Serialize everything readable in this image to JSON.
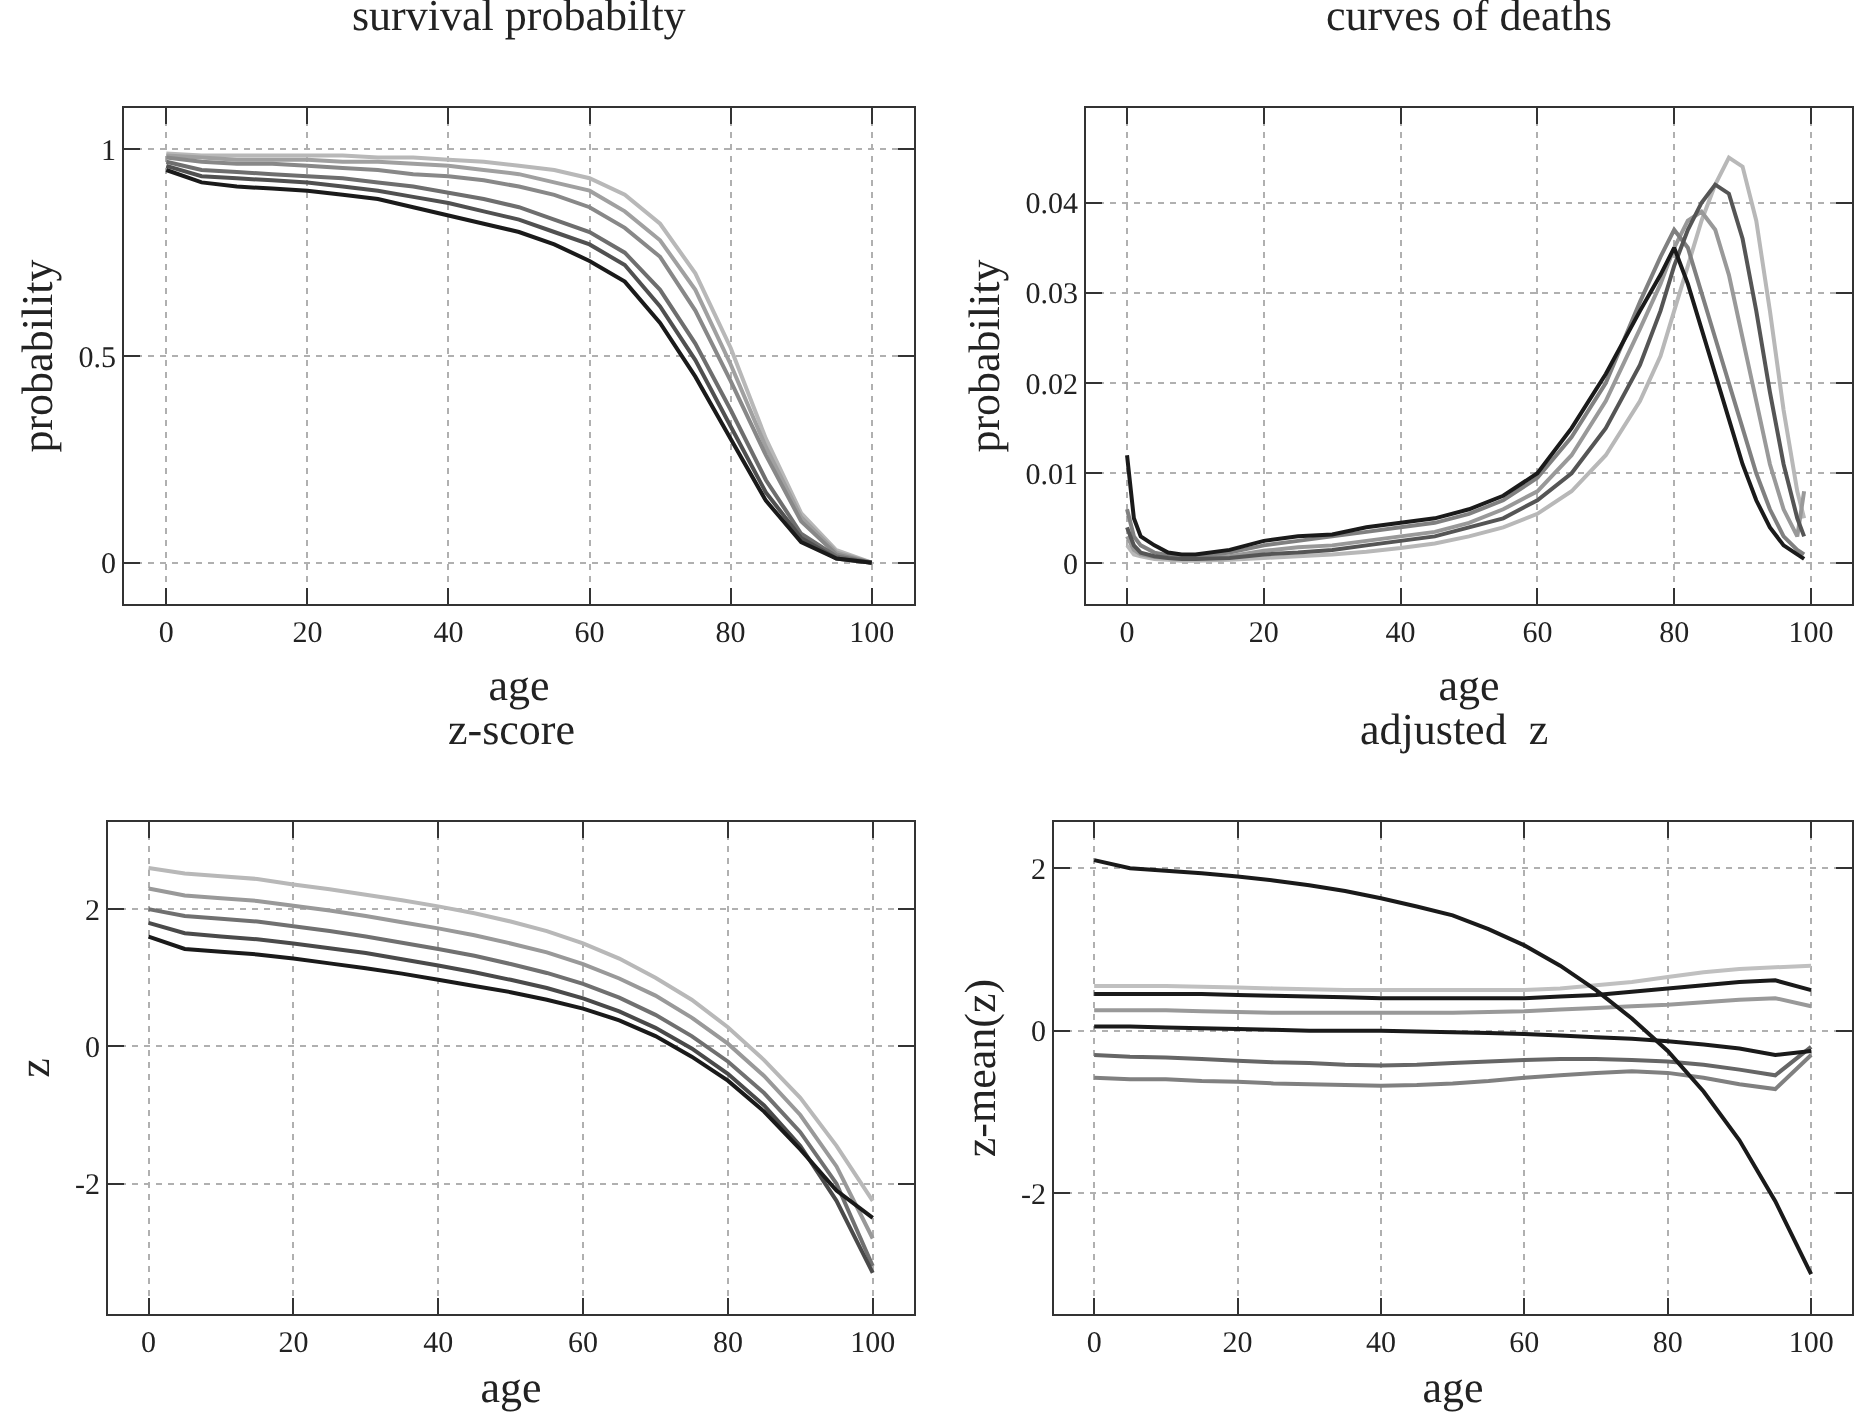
{
  "chart_data": [
    {
      "type": "line",
      "title": "survival probabilty",
      "xlabel": "age",
      "ylabel": "probability",
      "xlim": [
        -6,
        106
      ],
      "ylim": [
        -0.1,
        1.1
      ],
      "xticks": [
        0,
        20,
        40,
        60,
        80,
        100
      ],
      "yticks": [
        0,
        0.5,
        1
      ],
      "grid": true,
      "line_style": "solid",
      "x": [
        0,
        5,
        10,
        15,
        20,
        25,
        30,
        35,
        40,
        45,
        50,
        55,
        60,
        65,
        70,
        75,
        80,
        85,
        90,
        95,
        100
      ],
      "series": [
        {
          "color": "#b8b8b8",
          "values": [
            0.99,
            0.985,
            0.985,
            0.985,
            0.985,
            0.985,
            0.98,
            0.98,
            0.975,
            0.97,
            0.96,
            0.95,
            0.93,
            0.89,
            0.82,
            0.7,
            0.52,
            0.3,
            0.12,
            0.03,
            0.0
          ]
        },
        {
          "color": "#a0a0a0",
          "values": [
            0.985,
            0.98,
            0.975,
            0.975,
            0.975,
            0.97,
            0.97,
            0.965,
            0.96,
            0.95,
            0.94,
            0.92,
            0.9,
            0.85,
            0.78,
            0.66,
            0.48,
            0.28,
            0.11,
            0.025,
            0
          ]
        },
        {
          "color": "#888888",
          "values": [
            0.98,
            0.97,
            0.965,
            0.965,
            0.96,
            0.955,
            0.95,
            0.94,
            0.935,
            0.925,
            0.91,
            0.89,
            0.86,
            0.81,
            0.74,
            0.61,
            0.44,
            0.26,
            0.1,
            0.02,
            0
          ]
        },
        {
          "color": "#6e6e6e",
          "values": [
            0.97,
            0.95,
            0.945,
            0.94,
            0.935,
            0.93,
            0.92,
            0.91,
            0.895,
            0.88,
            0.86,
            0.83,
            0.8,
            0.75,
            0.66,
            0.53,
            0.37,
            0.2,
            0.07,
            0.015,
            0
          ]
        },
        {
          "color": "#505050",
          "values": [
            0.96,
            0.935,
            0.93,
            0.925,
            0.92,
            0.91,
            0.9,
            0.885,
            0.87,
            0.85,
            0.83,
            0.8,
            0.77,
            0.72,
            0.62,
            0.49,
            0.33,
            0.17,
            0.06,
            0.01,
            0
          ]
        },
        {
          "color": "#1a1a1a",
          "values": [
            0.95,
            0.92,
            0.91,
            0.905,
            0.9,
            0.89,
            0.88,
            0.86,
            0.84,
            0.82,
            0.8,
            0.77,
            0.73,
            0.68,
            0.58,
            0.45,
            0.3,
            0.15,
            0.05,
            0.01,
            0.0
          ]
        }
      ]
    },
    {
      "type": "line",
      "title": "curves of deaths",
      "xlabel": "age",
      "ylabel": "probability",
      "xlim": [
        -6,
        106
      ],
      "ylim": [
        -0.0045,
        0.0505
      ],
      "xticks": [
        0,
        20,
        40,
        60,
        80,
        100
      ],
      "yticks": [
        0,
        0.01,
        0.02,
        0.03,
        0.04
      ],
      "grid": true,
      "line_style": "solid",
      "x": [
        0,
        1,
        2,
        4,
        6,
        8,
        10,
        15,
        20,
        25,
        30,
        35,
        40,
        45,
        50,
        55,
        60,
        65,
        70,
        75,
        78,
        80,
        82,
        84,
        86,
        88,
        90,
        92,
        94,
        96,
        98,
        99
      ],
      "series": [
        {
          "color": "#b8b8b8",
          "values": [
            0.002,
            0.001,
            0.0008,
            0.0005,
            0.0004,
            0.0003,
            0.0003,
            0.0004,
            0.0006,
            0.0008,
            0.001,
            0.0013,
            0.0017,
            0.0022,
            0.003,
            0.004,
            0.0055,
            0.008,
            0.012,
            0.018,
            0.023,
            0.028,
            0.033,
            0.038,
            0.042,
            0.045,
            0.044,
            0.038,
            0.028,
            0.017,
            0.008,
            0.005
          ]
        },
        {
          "color": "#999999",
          "values": [
            0.003,
            0.0015,
            0.001,
            0.0007,
            0.0006,
            0.0005,
            0.0005,
            0.0008,
            0.0014,
            0.0018,
            0.002,
            0.0025,
            0.003,
            0.0035,
            0.0045,
            0.006,
            0.008,
            0.012,
            0.018,
            0.026,
            0.031,
            0.035,
            0.038,
            0.039,
            0.037,
            0.032,
            0.025,
            0.018,
            0.011,
            0.006,
            0.003,
            0.008
          ]
        },
        {
          "color": "#808080",
          "values": [
            0.006,
            0.003,
            0.002,
            0.0012,
            0.0009,
            0.0008,
            0.0008,
            0.0012,
            0.002,
            0.0025,
            0.003,
            0.0035,
            0.004,
            0.0045,
            0.0055,
            0.007,
            0.0095,
            0.014,
            0.02,
            0.029,
            0.034,
            0.037,
            0.035,
            0.03,
            0.025,
            0.02,
            0.015,
            0.01,
            0.006,
            0.003,
            0.0015,
            0.001
          ]
        },
        {
          "color": "#555555",
          "values": [
            0.004,
            0.002,
            0.0012,
            0.0008,
            0.0006,
            0.0005,
            0.0005,
            0.0006,
            0.001,
            0.0012,
            0.0015,
            0.002,
            0.0025,
            0.003,
            0.004,
            0.005,
            0.007,
            0.01,
            0.015,
            0.022,
            0.028,
            0.033,
            0.037,
            0.04,
            0.042,
            0.041,
            0.036,
            0.028,
            0.019,
            0.011,
            0.005,
            0.003
          ]
        },
        {
          "color": "#1a1a1a",
          "values": [
            0.012,
            0.005,
            0.003,
            0.002,
            0.0012,
            0.001,
            0.001,
            0.0015,
            0.0025,
            0.003,
            0.0032,
            0.004,
            0.0045,
            0.005,
            0.006,
            0.0075,
            0.01,
            0.015,
            0.021,
            0.028,
            0.032,
            0.035,
            0.031,
            0.026,
            0.021,
            0.016,
            0.011,
            0.007,
            0.004,
            0.002,
            0.001,
            0.0005
          ]
        }
      ]
    },
    {
      "type": "line",
      "title": "z-score",
      "xlabel": "age",
      "ylabel": "z",
      "xlim": [
        -5.6,
        105.7
      ],
      "ylim": [
        -3.9,
        3.27
      ],
      "xticks": [
        0,
        20,
        40,
        60,
        80,
        100
      ],
      "yticks": [
        -2,
        0,
        2
      ],
      "grid": true,
      "line_style": "solid",
      "x": [
        0,
        5,
        10,
        15,
        20,
        25,
        30,
        35,
        40,
        45,
        50,
        55,
        60,
        65,
        70,
        75,
        80,
        85,
        90,
        95,
        100
      ],
      "series": [
        {
          "color": "#b8b8b8",
          "values": [
            2.6,
            2.52,
            2.48,
            2.44,
            2.36,
            2.29,
            2.21,
            2.13,
            2.04,
            1.94,
            1.82,
            1.68,
            1.5,
            1.28,
            1.0,
            0.68,
            0.28,
            -0.2,
            -0.75,
            -1.45,
            -2.25
          ]
        },
        {
          "color": "#999999",
          "values": [
            2.3,
            2.2,
            2.16,
            2.12,
            2.05,
            1.98,
            1.9,
            1.81,
            1.72,
            1.62,
            1.5,
            1.37,
            1.2,
            0.99,
            0.74,
            0.42,
            0.04,
            -0.43,
            -1.0,
            -1.75,
            -2.8
          ]
        },
        {
          "color": "#707070",
          "values": [
            2.0,
            1.9,
            1.86,
            1.82,
            1.75,
            1.68,
            1.6,
            1.51,
            1.42,
            1.32,
            1.2,
            1.07,
            0.91,
            0.71,
            0.46,
            0.15,
            -0.22,
            -0.68,
            -1.25,
            -2.0,
            -3.2
          ]
        },
        {
          "color": "#4a4a4a",
          "values": [
            1.8,
            1.65,
            1.6,
            1.56,
            1.5,
            1.43,
            1.36,
            1.27,
            1.18,
            1.08,
            0.97,
            0.85,
            0.7,
            0.51,
            0.27,
            -0.03,
            -0.4,
            -0.86,
            -1.45,
            -2.25,
            -3.3
          ]
        },
        {
          "color": "#1a1a1a",
          "values": [
            1.6,
            1.42,
            1.38,
            1.34,
            1.28,
            1.21,
            1.14,
            1.06,
            0.97,
            0.88,
            0.79,
            0.68,
            0.55,
            0.38,
            0.15,
            -0.15,
            -0.5,
            -0.95,
            -1.5,
            -2.1,
            -2.5
          ]
        }
      ]
    },
    {
      "type": "line",
      "title": "adjusted  z",
      "xlabel": "age",
      "ylabel": "z-mean(z)",
      "xlim": [
        -5.6,
        105.7
      ],
      "ylim": [
        -3.49,
        2.57
      ],
      "xticks": [
        0,
        20,
        40,
        60,
        80,
        100
      ],
      "yticks": [
        -2,
        0,
        2
      ],
      "grid": true,
      "line_style": "solid",
      "x": [
        0,
        5,
        10,
        15,
        20,
        25,
        30,
        35,
        40,
        45,
        50,
        55,
        60,
        65,
        70,
        75,
        80,
        85,
        90,
        95,
        100
      ],
      "series": [
        {
          "color": "#c0c0c0",
          "values": [
            0.55,
            0.55,
            0.55,
            0.54,
            0.53,
            0.52,
            0.51,
            0.5,
            0.5,
            0.5,
            0.5,
            0.5,
            0.5,
            0.52,
            0.56,
            0.6,
            0.66,
            0.72,
            0.76,
            0.78,
            0.8
          ]
        },
        {
          "color": "#999999",
          "values": [
            0.25,
            0.25,
            0.25,
            0.24,
            0.23,
            0.22,
            0.22,
            0.22,
            0.22,
            0.22,
            0.22,
            0.23,
            0.24,
            0.26,
            0.28,
            0.3,
            0.32,
            0.35,
            0.38,
            0.4,
            0.3
          ]
        },
        {
          "color": "#666666",
          "values": [
            -0.3,
            -0.32,
            -0.33,
            -0.35,
            -0.37,
            -0.39,
            -0.4,
            -0.42,
            -0.43,
            -0.42,
            -0.4,
            -0.38,
            -0.36,
            -0.35,
            -0.35,
            -0.36,
            -0.38,
            -0.42,
            -0.48,
            -0.55,
            -0.2
          ]
        },
        {
          "color": "#808080",
          "values": [
            -0.58,
            -0.6,
            -0.6,
            -0.62,
            -0.63,
            -0.65,
            -0.66,
            -0.67,
            -0.68,
            -0.67,
            -0.65,
            -0.62,
            -0.58,
            -0.55,
            -0.52,
            -0.5,
            -0.52,
            -0.58,
            -0.66,
            -0.72,
            -0.3
          ]
        },
        {
          "color": "#1a1a1a",
          "values": [
            0.45,
            0.45,
            0.45,
            0.45,
            0.44,
            0.43,
            0.42,
            0.41,
            0.4,
            0.4,
            0.4,
            0.4,
            0.4,
            0.42,
            0.44,
            0.48,
            0.52,
            0.56,
            0.6,
            0.62,
            0.5
          ]
        },
        {
          "color": "#1a1a1a",
          "values": [
            0.05,
            0.05,
            0.04,
            0.03,
            0.02,
            0.01,
            0.0,
            0.0,
            0.0,
            -0.01,
            -0.02,
            -0.03,
            -0.04,
            -0.06,
            -0.08,
            -0.1,
            -0.13,
            -0.17,
            -0.22,
            -0.3,
            -0.25
          ]
        },
        {
          "color": "#1a1a1a",
          "values": [
            2.1,
            2.0,
            1.97,
            1.94,
            1.9,
            1.85,
            1.79,
            1.72,
            1.63,
            1.53,
            1.42,
            1.25,
            1.05,
            0.8,
            0.5,
            0.15,
            -0.25,
            -0.75,
            -1.35,
            -2.1,
            -3.0
          ]
        }
      ]
    }
  ]
}
